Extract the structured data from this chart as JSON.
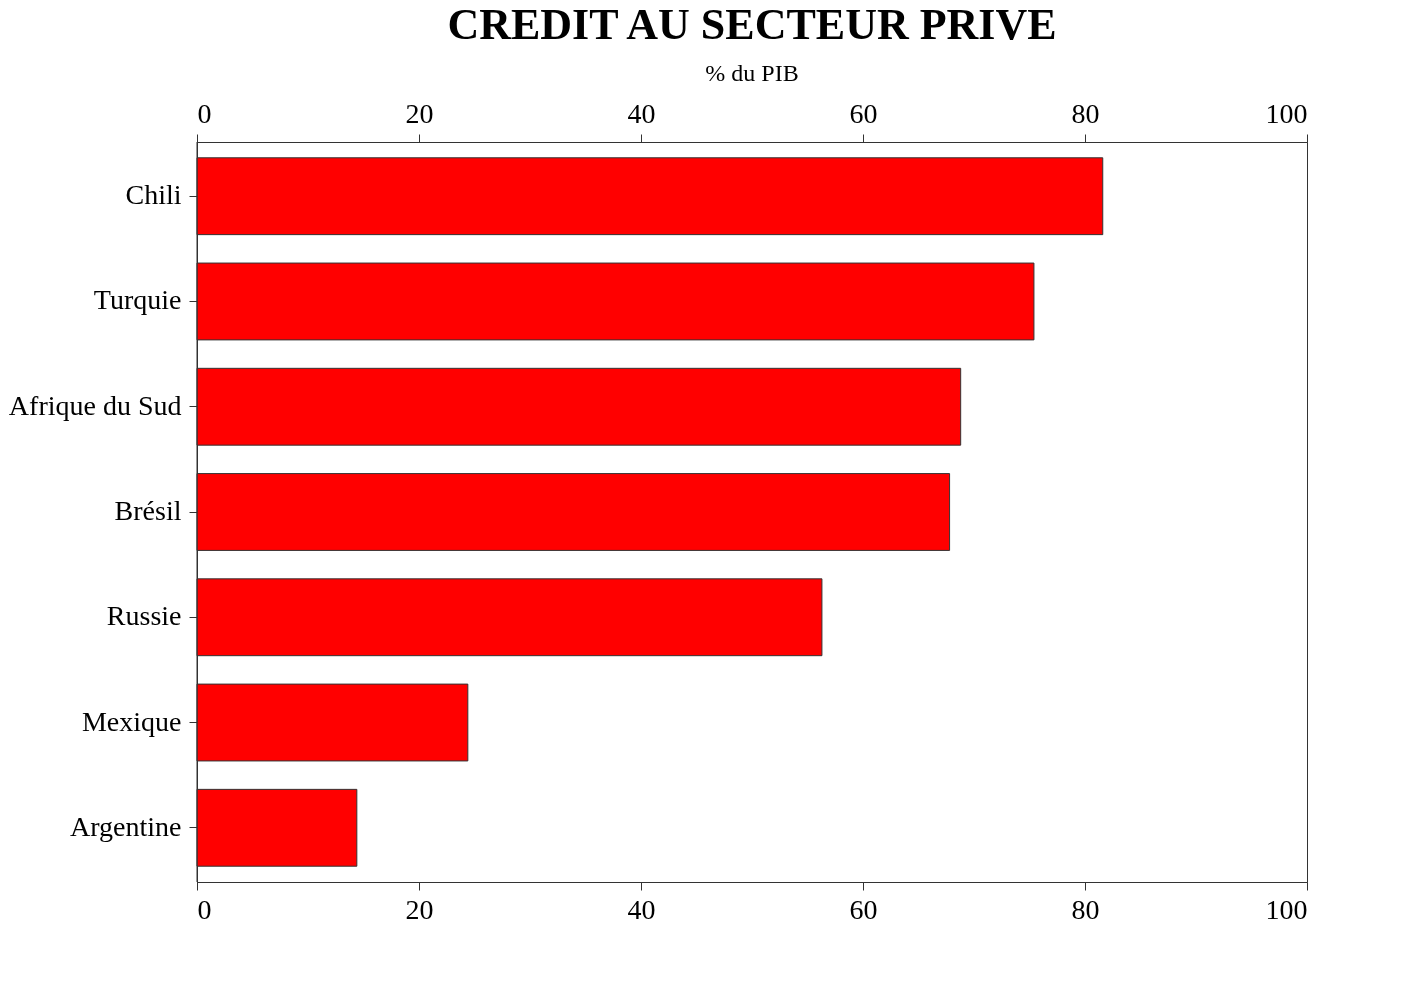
{
  "chart_data": {
    "type": "bar",
    "orientation": "horizontal",
    "title": "CREDIT AU SECTEUR PRIVE",
    "subtitle": "% du PIB",
    "categories": [
      "Chili",
      "Turquie",
      "Afrique du Sud",
      "Brésil",
      "Russie",
      "Mexique",
      "Argentine"
    ],
    "values": [
      81.6,
      75.4,
      68.8,
      67.8,
      56.3,
      24.4,
      14.4
    ],
    "color": "#ff0000",
    "xlim": [
      0,
      100
    ],
    "xticks": [
      0,
      20,
      40,
      60,
      80,
      100
    ],
    "x2lim": [
      0,
      100
    ],
    "x2ticks": [
      0,
      20,
      40,
      60,
      80,
      100
    ],
    "grid": false
  }
}
